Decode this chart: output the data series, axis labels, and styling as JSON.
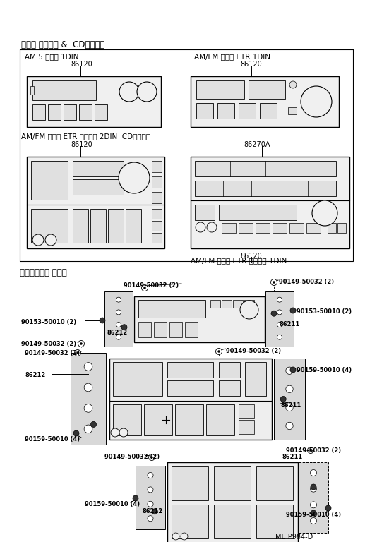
{
  "bg_color": "#ffffff",
  "page_ref": "ME P984-D",
  "sec1_title": "ラジオ レシーバ &  CDプレーヤ",
  "sec2_title": "セッティング パーツ",
  "r1_label": "AM 5 ボタン 1DIN",
  "r1_num": "86120",
  "r2_label": "AM/FM マルチ ETR 1DIN",
  "r2_num": "86120",
  "r3_label": "AM/FM マルチ ETR カセット 2DIN  CDプレーヤ",
  "r3_num": "86120",
  "r4_numA": "86270A",
  "r4_num": "86120",
  "r4_label": "AM/FM マルチ ETR カセット 1DIN"
}
